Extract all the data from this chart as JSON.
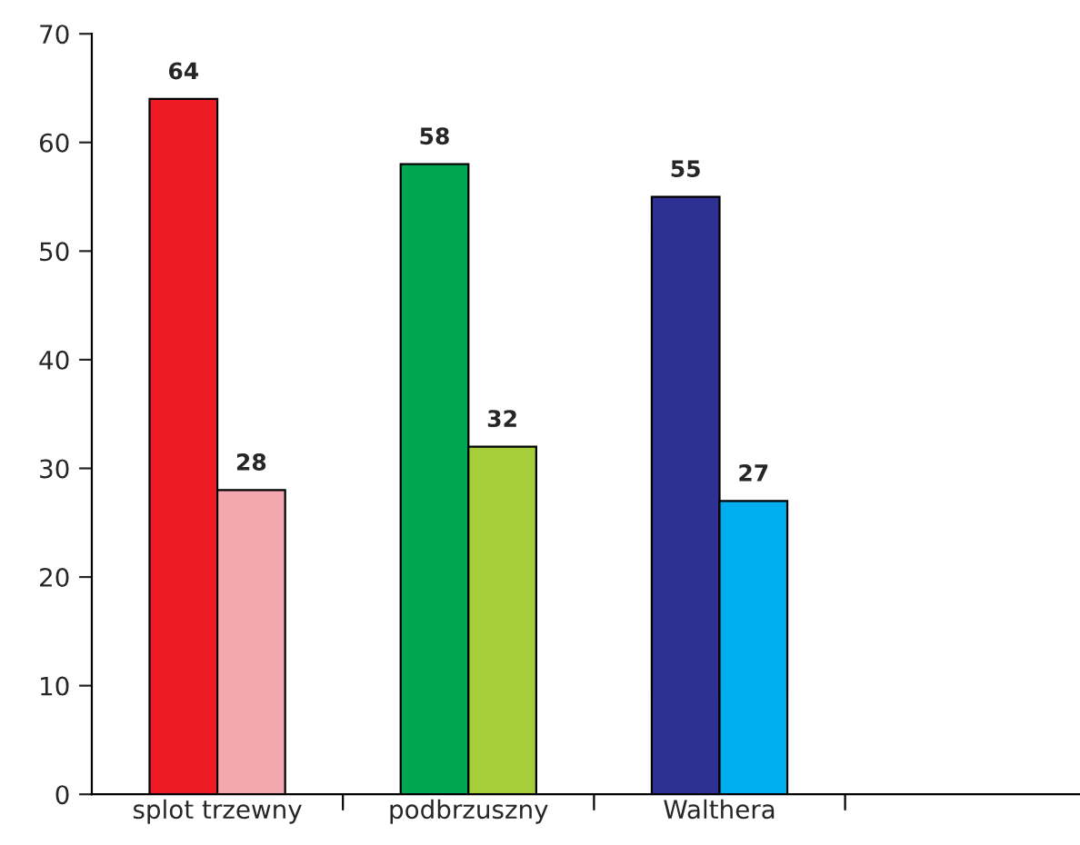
{
  "chart_data": {
    "type": "bar",
    "categories": [
      "splot trzewny",
      "podbrzuszny",
      "Walthera",
      null
    ],
    "series": [
      {
        "colors": [
          "#ed1c24",
          "#00a651",
          "#2e3192",
          null
        ],
        "values": [
          64,
          58,
          55,
          null
        ]
      },
      {
        "colors": [
          "#f4a7ae",
          "#a6ce39",
          "#00aeef",
          null
        ],
        "values": [
          28,
          32,
          27,
          null
        ]
      }
    ],
    "ylim": [
      0,
      70
    ],
    "yticks": [
      0,
      10,
      20,
      30,
      40,
      50,
      60,
      70
    ],
    "grid": false,
    "data_labels": true,
    "legend": false
  }
}
